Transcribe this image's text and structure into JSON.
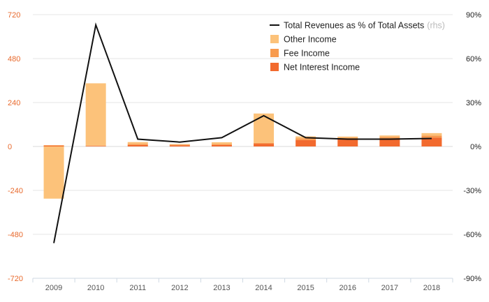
{
  "chart_data": {
    "type": "bar",
    "categories": [
      "2009",
      "2010",
      "2011",
      "2012",
      "2013",
      "2014",
      "2015",
      "2016",
      "2017",
      "2018"
    ],
    "series": [
      {
        "name": "Net Interest Income",
        "kind": "bar",
        "axis": "left",
        "color": "#f26a2e",
        "values": [
          4,
          3,
          8,
          6,
          8,
          15,
          35,
          40,
          42,
          48
        ]
      },
      {
        "name": "Fee Income",
        "kind": "bar",
        "axis": "left",
        "color": "#f79a4e",
        "values": [
          3,
          2,
          6,
          4,
          5,
          5,
          10,
          8,
          10,
          12
        ]
      },
      {
        "name": "Other Income",
        "kind": "bar",
        "axis": "left",
        "color": "#fcc27a",
        "values": [
          -285,
          340,
          10,
          3,
          10,
          160,
          10,
          6,
          8,
          13
        ]
      },
      {
        "name": "Total Revenues as % of Total Assets",
        "kind": "line",
        "axis": "right",
        "color": "#111111",
        "values": [
          -66,
          83,
          5,
          3,
          6,
          21,
          6,
          5,
          5,
          5.5
        ]
      }
    ],
    "left_axis": {
      "min": -720,
      "max": 720,
      "ticks": [
        720,
        480,
        240,
        0,
        -240,
        -480,
        -720
      ],
      "tick_labels": [
        "720",
        "480",
        "240",
        "0",
        "-240",
        "-480",
        "-720"
      ]
    },
    "right_axis": {
      "min": -90,
      "max": 90,
      "ticks": [
        90,
        60,
        30,
        0,
        -30,
        -60,
        -90
      ],
      "tick_labels": [
        "90%",
        "60%",
        "30%",
        "0%",
        "-30%",
        "-60%",
        "-90%"
      ]
    },
    "legend": {
      "placement": "top-right",
      "entries": [
        {
          "label": "Total Revenues as % of Total Assets",
          "note": "(rhs)",
          "type": "line",
          "color": "#111111"
        },
        {
          "label": "Other Income",
          "type": "box",
          "color": "#fcc27a"
        },
        {
          "label": "Fee Income",
          "type": "box",
          "color": "#f79a4e"
        },
        {
          "label": "Net Interest Income",
          "type": "box",
          "color": "#f26a2e"
        }
      ]
    },
    "grid": true,
    "colors": {
      "left_ticks": "#e8692c",
      "right_ticks": "#222222",
      "x_ticks": "#555555",
      "grid": "#e6e6e6",
      "axis": "#cfd9e3"
    }
  }
}
